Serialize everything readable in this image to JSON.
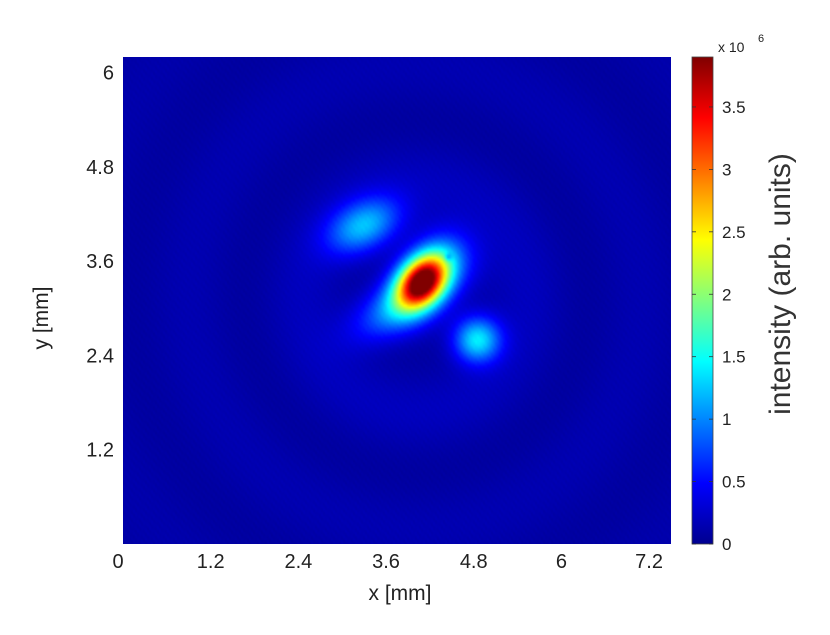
{
  "chart_data": {
    "type": "heatmap",
    "title": "",
    "xlabel": "x [mm]",
    "ylabel": "y [mm]",
    "xlim": [
      0,
      7.5
    ],
    "ylim": [
      0,
      6.2
    ],
    "x_ticks": [
      "0",
      "1.2",
      "2.4",
      "3.6",
      "4.8",
      "6",
      "7.2"
    ],
    "y_ticks": [
      "1.2",
      "2.4",
      "3.6",
      "4.8",
      "6"
    ],
    "x_tick_values": [
      0,
      1.2,
      2.4,
      3.6,
      4.8,
      6,
      7.2
    ],
    "y_tick_values": [
      1.2,
      2.4,
      3.6,
      4.8,
      6
    ],
    "colormap": "jet",
    "background_level": 150000,
    "colorbar": {
      "label": "intensity (arb. units)",
      "scale_base": "x 10",
      "scale_exponent": "6",
      "range": [
        0,
        3.9
      ],
      "ticks": [
        "0",
        "0.5",
        "1",
        "1.5",
        "2",
        "2.5",
        "3",
        "3.5"
      ],
      "tick_values": [
        0,
        0.5,
        1,
        1.5,
        2,
        2.5,
        3,
        3.5
      ]
    },
    "features": [
      {
        "x": 4.1,
        "y": 3.35,
        "peak": 3900000
      },
      {
        "x": 3.3,
        "y": 4.05,
        "peak": 1200000
      },
      {
        "x": 3.75,
        "y": 3.0,
        "peak": 1000000
      },
      {
        "x": 4.85,
        "y": 2.6,
        "peak": 1400000
      },
      {
        "x": 4.45,
        "y": 3.65,
        "peak": 700000
      }
    ]
  }
}
